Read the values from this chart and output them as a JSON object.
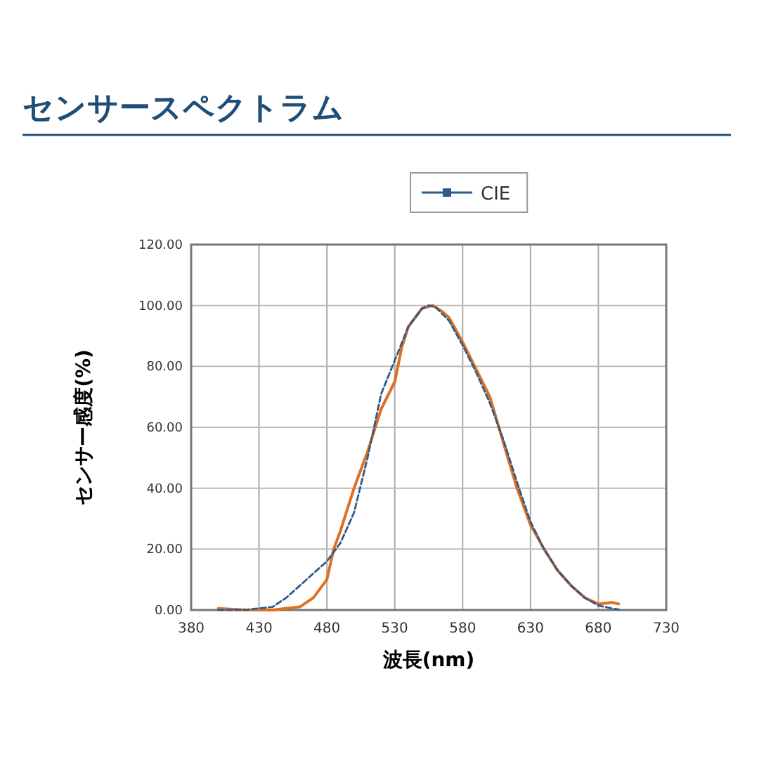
{
  "chart_data": {
    "type": "line",
    "title": "センサースペクトラム",
    "xlabel": "波長(nm)",
    "ylabel": "センサー感度(%)",
    "xlim": [
      380,
      730
    ],
    "xticks": [
      380,
      430,
      480,
      530,
      580,
      630,
      680,
      730
    ],
    "ylim": [
      0,
      120
    ],
    "yticks": [
      {
        "value": 0,
        "label": "0.00"
      },
      {
        "value": 20,
        "label": "20.00"
      },
      {
        "value": 40,
        "label": "40.00"
      },
      {
        "value": 60,
        "label": "60.00"
      },
      {
        "value": 80,
        "label": "80.00"
      },
      {
        "value": 100,
        "label": "100.00"
      },
      {
        "value": 120,
        "label": "120.00"
      }
    ],
    "grid": true,
    "legend": "top",
    "series": [
      {
        "color": "#e07020",
        "line_style": "solid",
        "x": [
          400,
          420,
          440,
          460,
          470,
          480,
          485,
          490,
          500,
          510,
          520,
          530,
          535,
          540,
          550,
          558,
          565,
          570,
          580,
          590,
          600,
          610,
          620,
          630,
          640,
          650,
          660,
          670,
          680,
          690,
          695
        ],
        "values": [
          0.5,
          0,
          0,
          1,
          4,
          10,
          20,
          26,
          40,
          52,
          66,
          75,
          86,
          93,
          99,
          100,
          98,
          96,
          88,
          79,
          70,
          55,
          40,
          28,
          20,
          13,
          8,
          4,
          2,
          2.5,
          2
        ]
      },
      {
        "name": "CIE",
        "color": "#2f5a8a",
        "line_style": "dashed",
        "x": [
          400,
          420,
          440,
          450,
          460,
          470,
          480,
          490,
          500,
          510,
          520,
          530,
          540,
          550,
          555,
          560,
          570,
          580,
          590,
          600,
          610,
          620,
          630,
          640,
          650,
          660,
          670,
          680,
          690,
          695
        ],
        "values": [
          0,
          0.1,
          1,
          4,
          8,
          12,
          16,
          22,
          32,
          50,
          71,
          82,
          93,
          99,
          100,
          99.5,
          95,
          87,
          78,
          68,
          56,
          42,
          29,
          20,
          13,
          8,
          4,
          1.5,
          0.5,
          0.2
        ]
      }
    ]
  }
}
